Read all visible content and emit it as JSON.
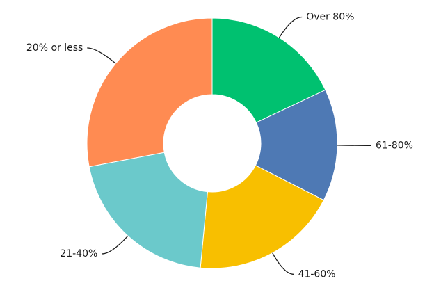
{
  "chart_data": {
    "type": "donut",
    "categories": [
      "Over 80%",
      "61-80%",
      "41-60%",
      "21-40%",
      "20% or less"
    ],
    "values": [
      18,
      14.5,
      19,
      20.5,
      28
    ],
    "colors": [
      "#00c170",
      "#4e79b4",
      "#f8bf00",
      "#6bc9cb",
      "#ff8b52"
    ]
  }
}
